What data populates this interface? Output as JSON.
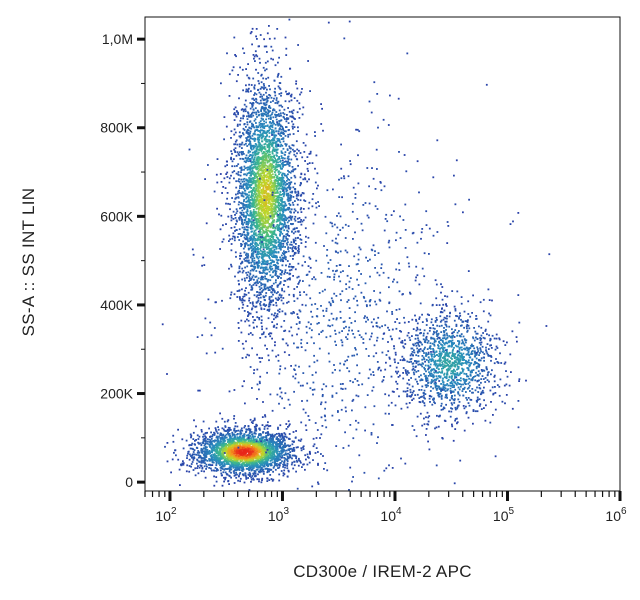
{
  "chart_data": {
    "type": "scatter",
    "title": "",
    "xlabel": "CD300e / IREM-2 APC",
    "ylabel": "SS-A :: SS INT LIN",
    "x_scale": "log",
    "xlim": [
      60,
      1000000
    ],
    "ylim": [
      -20000,
      1050000
    ],
    "grid": false,
    "color_mode": "density (blue → green → yellow → red)",
    "x_ticks": [
      {
        "base": "10",
        "exp": "2",
        "value": 100
      },
      {
        "base": "10",
        "exp": "3",
        "value": 1000
      },
      {
        "base": "10",
        "exp": "4",
        "value": 10000
      },
      {
        "base": "10",
        "exp": "5",
        "value": 100000
      },
      {
        "base": "10",
        "exp": "6",
        "value": 1000000
      }
    ],
    "y_ticks": [
      {
        "label": "0",
        "value": 0
      },
      {
        "label": "200K",
        "value": 200000
      },
      {
        "label": "400K",
        "value": 400000
      },
      {
        "label": "600K",
        "value": 600000
      },
      {
        "label": "800K",
        "value": 800000
      },
      {
        "label": "1,0M",
        "value": 1000000
      }
    ],
    "populations": [
      {
        "center_x": 450,
        "center_y": 70000,
        "spread_logx": 0.22,
        "spread_y": 25000,
        "count": 2600,
        "peak_color": "#e8261a"
      },
      {
        "center_x": 700,
        "center_y": 650000,
        "spread_logx": 0.14,
        "spread_y": 130000,
        "count": 3600,
        "peak_color": "#d8e020"
      },
      {
        "center_x": 30000,
        "center_y": 270000,
        "spread_logx": 0.22,
        "spread_y": 60000,
        "count": 1300,
        "peak_color": "#1d5bb0"
      },
      {
        "center_x": 3000,
        "center_y": 380000,
        "spread_logx": 0.55,
        "spread_y": 220000,
        "count": 900,
        "peak_color": "#3a4fb8"
      }
    ],
    "colors": {
      "axis": "#111111",
      "low_density": "#2a3fa8",
      "mid_density": "#2fb0a0",
      "high_density": "#e8261a"
    }
  }
}
